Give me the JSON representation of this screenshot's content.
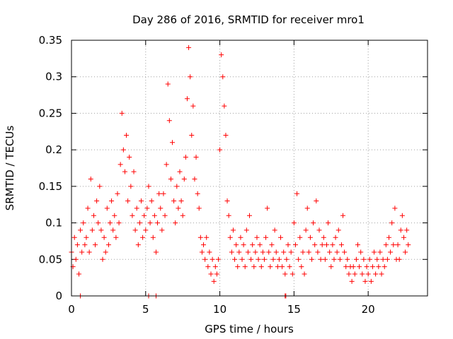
{
  "chart_data": {
    "type": "scatter",
    "title": "Day 286 of 2016, SRMTID for receiver mro1",
    "xlabel": "GPS time / hours",
    "ylabel": "SRMTID / TECUs",
    "xlim": [
      0,
      24
    ],
    "ylim": [
      0,
      0.35
    ],
    "xticks": [
      0,
      5,
      10,
      15,
      20
    ],
    "xtick_labels": [
      "0",
      "5",
      "10",
      "15",
      "20"
    ],
    "yticks": [
      0,
      0.05,
      0.1,
      0.15,
      0.2,
      0.25,
      0.3,
      0.35
    ],
    "ytick_labels": [
      "0",
      "0.05",
      "0.1",
      "0.15",
      "0.2",
      "0.25",
      "0.3",
      "0.35"
    ],
    "grid": true,
    "marker": "+",
    "series": [
      {
        "name": "SRMTID",
        "color": "#ff0000",
        "points": [
          [
            0.0,
            0.06
          ],
          [
            0.1,
            0.04
          ],
          [
            0.2,
            0.08
          ],
          [
            0.3,
            0.05
          ],
          [
            0.4,
            0.07
          ],
          [
            0.5,
            0.03
          ],
          [
            0.6,
            0.09
          ],
          [
            0.7,
            0.06
          ],
          [
            0.8,
            0.1
          ],
          [
            0.9,
            0.07
          ],
          [
            1.0,
            0.08
          ],
          [
            1.1,
            0.12
          ],
          [
            1.2,
            0.06
          ],
          [
            1.3,
            0.16
          ],
          [
            1.4,
            0.09
          ],
          [
            1.5,
            0.11
          ],
          [
            1.6,
            0.07
          ],
          [
            1.7,
            0.13
          ],
          [
            1.8,
            0.1
          ],
          [
            1.9,
            0.15
          ],
          [
            2.0,
            0.09
          ],
          [
            2.1,
            0.05
          ],
          [
            2.2,
            0.08
          ],
          [
            2.3,
            0.06
          ],
          [
            2.4,
            0.12
          ],
          [
            2.5,
            0.07
          ],
          [
            2.6,
            0.1
          ],
          [
            2.7,
            0.13
          ],
          [
            2.8,
            0.09
          ],
          [
            2.9,
            0.11
          ],
          [
            3.0,
            0.08
          ],
          [
            3.1,
            0.14
          ],
          [
            3.2,
            0.1
          ],
          [
            3.3,
            0.18
          ],
          [
            3.4,
            0.25
          ],
          [
            3.5,
            0.2
          ],
          [
            3.6,
            0.17
          ],
          [
            3.7,
            0.22
          ],
          [
            3.8,
            0.13
          ],
          [
            3.9,
            0.19
          ],
          [
            4.0,
            0.15
          ],
          [
            4.1,
            0.11
          ],
          [
            4.2,
            0.17
          ],
          [
            4.3,
            0.09
          ],
          [
            4.4,
            0.12
          ],
          [
            4.5,
            0.07
          ],
          [
            4.6,
            0.1
          ],
          [
            4.7,
            0.13
          ],
          [
            4.8,
            0.08
          ],
          [
            4.9,
            0.11
          ],
          [
            5.0,
            0.09
          ],
          [
            5.1,
            0.12
          ],
          [
            5.2,
            0.15
          ],
          [
            5.3,
            0.1
          ],
          [
            5.4,
            0.13
          ],
          [
            5.5,
            0.08
          ],
          [
            5.6,
            0.11
          ],
          [
            5.7,
            0.06
          ],
          [
            5.8,
            0.1
          ],
          [
            5.9,
            0.14
          ],
          [
            6.0,
            0.12
          ],
          [
            6.1,
            0.09
          ],
          [
            6.2,
            0.14
          ],
          [
            6.3,
            0.11
          ],
          [
            6.4,
            0.18
          ],
          [
            6.5,
            0.29
          ],
          [
            6.6,
            0.24
          ],
          [
            6.7,
            0.16
          ],
          [
            6.8,
            0.21
          ],
          [
            6.9,
            0.13
          ],
          [
            7.0,
            0.1
          ],
          [
            7.1,
            0.15
          ],
          [
            7.2,
            0.12
          ],
          [
            7.3,
            0.17
          ],
          [
            7.4,
            0.13
          ],
          [
            7.5,
            0.11
          ],
          [
            7.6,
            0.16
          ],
          [
            7.7,
            0.19
          ],
          [
            7.8,
            0.27
          ],
          [
            7.9,
            0.34
          ],
          [
            8.0,
            0.3
          ],
          [
            8.1,
            0.22
          ],
          [
            8.2,
            0.26
          ],
          [
            8.3,
            0.16
          ],
          [
            8.4,
            0.19
          ],
          [
            8.5,
            0.14
          ],
          [
            8.6,
            0.12
          ],
          [
            8.7,
            0.08
          ],
          [
            8.8,
            0.06
          ],
          [
            8.9,
            0.07
          ],
          [
            9.0,
            0.05
          ],
          [
            9.1,
            0.08
          ],
          [
            9.2,
            0.04
          ],
          [
            9.3,
            0.06
          ],
          [
            9.4,
            0.03
          ],
          [
            9.5,
            0.05
          ],
          [
            9.6,
            0.02
          ],
          [
            9.7,
            0.04
          ],
          [
            9.8,
            0.03
          ],
          [
            9.9,
            0.05
          ],
          [
            10.0,
            0.2
          ],
          [
            10.1,
            0.33
          ],
          [
            10.2,
            0.3
          ],
          [
            10.3,
            0.26
          ],
          [
            10.4,
            0.22
          ],
          [
            10.5,
            0.13
          ],
          [
            10.6,
            0.11
          ],
          [
            10.7,
            0.08
          ],
          [
            10.8,
            0.06
          ],
          [
            10.9,
            0.09
          ],
          [
            11.0,
            0.05
          ],
          [
            11.1,
            0.07
          ],
          [
            11.2,
            0.04
          ],
          [
            11.3,
            0.06
          ],
          [
            11.4,
            0.08
          ],
          [
            11.5,
            0.05
          ],
          [
            11.6,
            0.07
          ],
          [
            11.7,
            0.04
          ],
          [
            11.8,
            0.09
          ],
          [
            11.9,
            0.06
          ],
          [
            12.0,
            0.11
          ],
          [
            12.1,
            0.05
          ],
          [
            12.2,
            0.07
          ],
          [
            12.3,
            0.04
          ],
          [
            12.4,
            0.06
          ],
          [
            12.5,
            0.08
          ],
          [
            12.6,
            0.05
          ],
          [
            12.7,
            0.07
          ],
          [
            12.8,
            0.04
          ],
          [
            12.9,
            0.06
          ],
          [
            13.0,
            0.05
          ],
          [
            13.1,
            0.08
          ],
          [
            13.2,
            0.12
          ],
          [
            13.3,
            0.06
          ],
          [
            13.4,
            0.04
          ],
          [
            13.5,
            0.07
          ],
          [
            13.6,
            0.05
          ],
          [
            13.7,
            0.09
          ],
          [
            13.8,
            0.06
          ],
          [
            13.9,
            0.04
          ],
          [
            14.0,
            0.05
          ],
          [
            14.1,
            0.08
          ],
          [
            14.2,
            0.04
          ],
          [
            14.3,
            0.06
          ],
          [
            14.4,
            0.03
          ],
          [
            14.5,
            0.05
          ],
          [
            14.6,
            0.07
          ],
          [
            14.7,
            0.04
          ],
          [
            14.8,
            0.06
          ],
          [
            14.9,
            0.03
          ],
          [
            15.0,
            0.1
          ],
          [
            15.1,
            0.07
          ],
          [
            15.2,
            0.14
          ],
          [
            15.3,
            0.05
          ],
          [
            15.4,
            0.08
          ],
          [
            15.5,
            0.04
          ],
          [
            15.6,
            0.06
          ],
          [
            15.7,
            0.03
          ],
          [
            15.8,
            0.09
          ],
          [
            15.9,
            0.12
          ],
          [
            16.0,
            0.06
          ],
          [
            16.1,
            0.08
          ],
          [
            16.2,
            0.05
          ],
          [
            16.3,
            0.1
          ],
          [
            16.4,
            0.07
          ],
          [
            16.5,
            0.13
          ],
          [
            16.6,
            0.06
          ],
          [
            16.7,
            0.09
          ],
          [
            16.8,
            0.05
          ],
          [
            16.9,
            0.07
          ],
          [
            17.0,
            0.08
          ],
          [
            17.1,
            0.05
          ],
          [
            17.2,
            0.07
          ],
          [
            17.3,
            0.1
          ],
          [
            17.4,
            0.06
          ],
          [
            17.5,
            0.04
          ],
          [
            17.6,
            0.07
          ],
          [
            17.7,
            0.05
          ],
          [
            17.8,
            0.08
          ],
          [
            17.9,
            0.06
          ],
          [
            18.0,
            0.09
          ],
          [
            18.1,
            0.05
          ],
          [
            18.2,
            0.07
          ],
          [
            18.3,
            0.11
          ],
          [
            18.4,
            0.06
          ],
          [
            18.5,
            0.04
          ],
          [
            18.6,
            0.05
          ],
          [
            18.7,
            0.03
          ],
          [
            18.8,
            0.04
          ],
          [
            18.9,
            0.02
          ],
          [
            19.0,
            0.04
          ],
          [
            19.1,
            0.03
          ],
          [
            19.2,
            0.05
          ],
          [
            19.3,
            0.07
          ],
          [
            19.4,
            0.04
          ],
          [
            19.5,
            0.06
          ],
          [
            19.6,
            0.03
          ],
          [
            19.7,
            0.05
          ],
          [
            19.8,
            0.02
          ],
          [
            19.9,
            0.04
          ],
          [
            20.0,
            0.03
          ],
          [
            20.1,
            0.05
          ],
          [
            20.2,
            0.02
          ],
          [
            20.3,
            0.04
          ],
          [
            20.4,
            0.06
          ],
          [
            20.5,
            0.03
          ],
          [
            20.6,
            0.05
          ],
          [
            20.7,
            0.04
          ],
          [
            20.8,
            0.06
          ],
          [
            20.9,
            0.03
          ],
          [
            21.0,
            0.05
          ],
          [
            21.1,
            0.04
          ],
          [
            21.2,
            0.07
          ],
          [
            21.3,
            0.05
          ],
          [
            21.4,
            0.08
          ],
          [
            21.5,
            0.06
          ],
          [
            21.6,
            0.1
          ],
          [
            21.7,
            0.07
          ],
          [
            21.8,
            0.12
          ],
          [
            21.9,
            0.05
          ],
          [
            22.0,
            0.07
          ],
          [
            22.1,
            0.05
          ],
          [
            22.2,
            0.09
          ],
          [
            22.3,
            0.11
          ],
          [
            22.4,
            0.08
          ],
          [
            22.5,
            0.06
          ],
          [
            22.6,
            0.09
          ],
          [
            22.7,
            0.07
          ],
          [
            0.6,
            0.0
          ],
          [
            5.2,
            0.0
          ],
          [
            5.7,
            0.0
          ],
          [
            14.4,
            0.0
          ],
          [
            14.45,
            0.0
          ]
        ]
      }
    ]
  }
}
